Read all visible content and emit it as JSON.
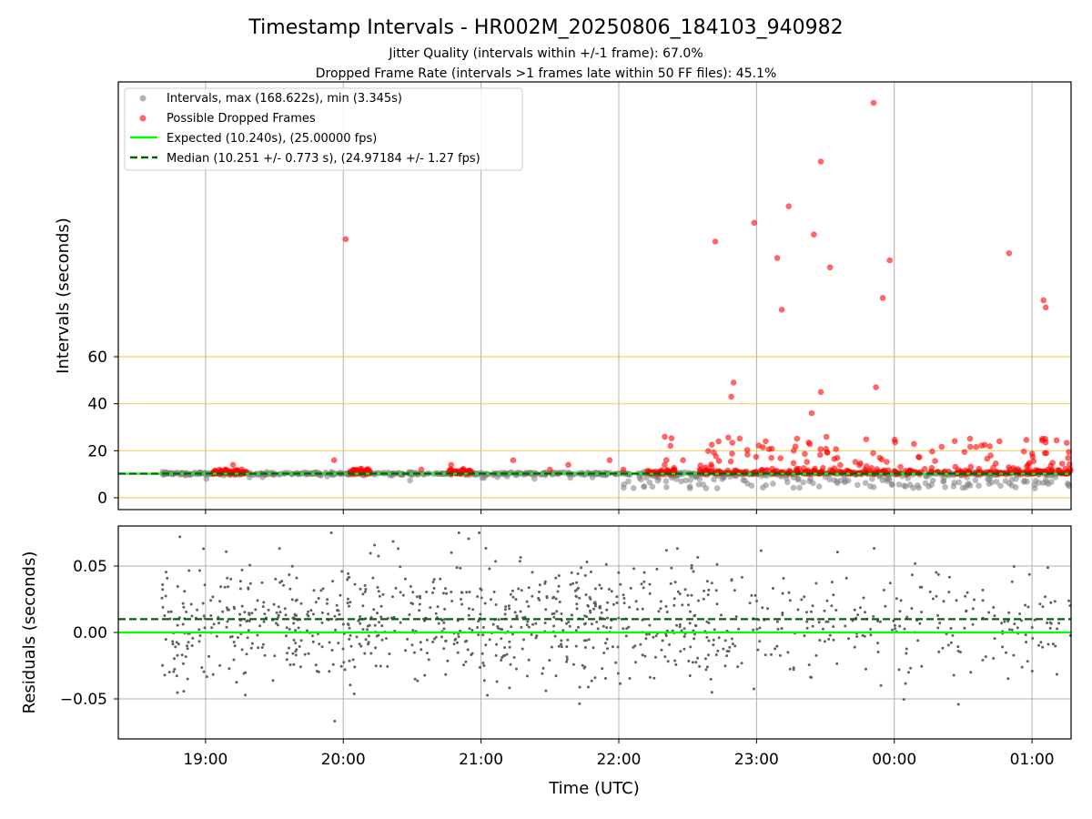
{
  "title": "Timestamp Intervals - HR002M_20250806_184103_940982",
  "subtitle1": "Jitter Quality (intervals within +/-1 frame): 67.0%",
  "subtitle2": "Dropped Frame Rate (intervals >1 frames late within 50 FF files): 45.1%",
  "colors": {
    "interval_points": "#808080",
    "dropped_points": "#ff0000",
    "expected_line": "#00ff00",
    "median_line": "#006400",
    "threshold_lines": "#f5c242",
    "grid": "#b0b0b0",
    "residual_points": "#606060"
  },
  "chart_data": [
    {
      "type": "scatter",
      "panel": "top",
      "ylabel": "Intervals (seconds)",
      "xlabel": "",
      "yticks": [
        0,
        20,
        40,
        60
      ],
      "threshold_lines": [
        0,
        20,
        40,
        60
      ],
      "expected_value": 10.24,
      "median_value": 10.251,
      "legend_placement": "top-left",
      "legend": [
        "Intervals, max (168.622s), min (3.345s)",
        "Possible Dropped Frames",
        "Expected (10.240s), (25.00000 fps)",
        "Median (10.251 +/- 0.773 s), (24.97184 +/- 1.27 fps)"
      ],
      "grid": "vertical",
      "dropped_outliers": [
        {
          "t": "20:01",
          "y": 110
        },
        {
          "t": "22:42",
          "y": 109
        },
        {
          "t": "22:59",
          "y": 117
        },
        {
          "t": "23:09",
          "y": 102
        },
        {
          "t": "23:14",
          "y": 124
        },
        {
          "t": "23:11",
          "y": 80
        },
        {
          "t": "23:25",
          "y": 112
        },
        {
          "t": "23:28",
          "y": 143
        },
        {
          "t": "23:32",
          "y": 98
        },
        {
          "t": "23:51",
          "y": 168
        },
        {
          "t": "23:55",
          "y": 85
        },
        {
          "t": "23:58",
          "y": 101
        },
        {
          "t": "00:50",
          "y": 104
        },
        {
          "t": "01:05",
          "y": 84
        },
        {
          "t": "01:06",
          "y": 81
        },
        {
          "t": "22:50",
          "y": 49
        },
        {
          "t": "22:49",
          "y": 43
        },
        {
          "t": "23:28",
          "y": 45
        },
        {
          "t": "23:52",
          "y": 47
        },
        {
          "t": "23:24",
          "y": 36
        }
      ]
    },
    {
      "type": "scatter",
      "panel": "bottom",
      "ylabel": "Residuals (seconds)",
      "xlabel": "Time (UTC)",
      "yticks": [
        0.05,
        0.0,
        -0.05
      ],
      "ytick_labels": [
        "0.05",
        "0.00",
        "−0.05"
      ],
      "ylim": [
        -0.08,
        0.08
      ],
      "expected_value": 0.0,
      "median_value": 0.01,
      "grid": "both"
    }
  ],
  "x_axis": {
    "start": "18:22",
    "end": "01:17",
    "tick_labels": [
      "19:00",
      "20:00",
      "21:00",
      "22:00",
      "23:00",
      "00:00",
      "01:00"
    ]
  }
}
